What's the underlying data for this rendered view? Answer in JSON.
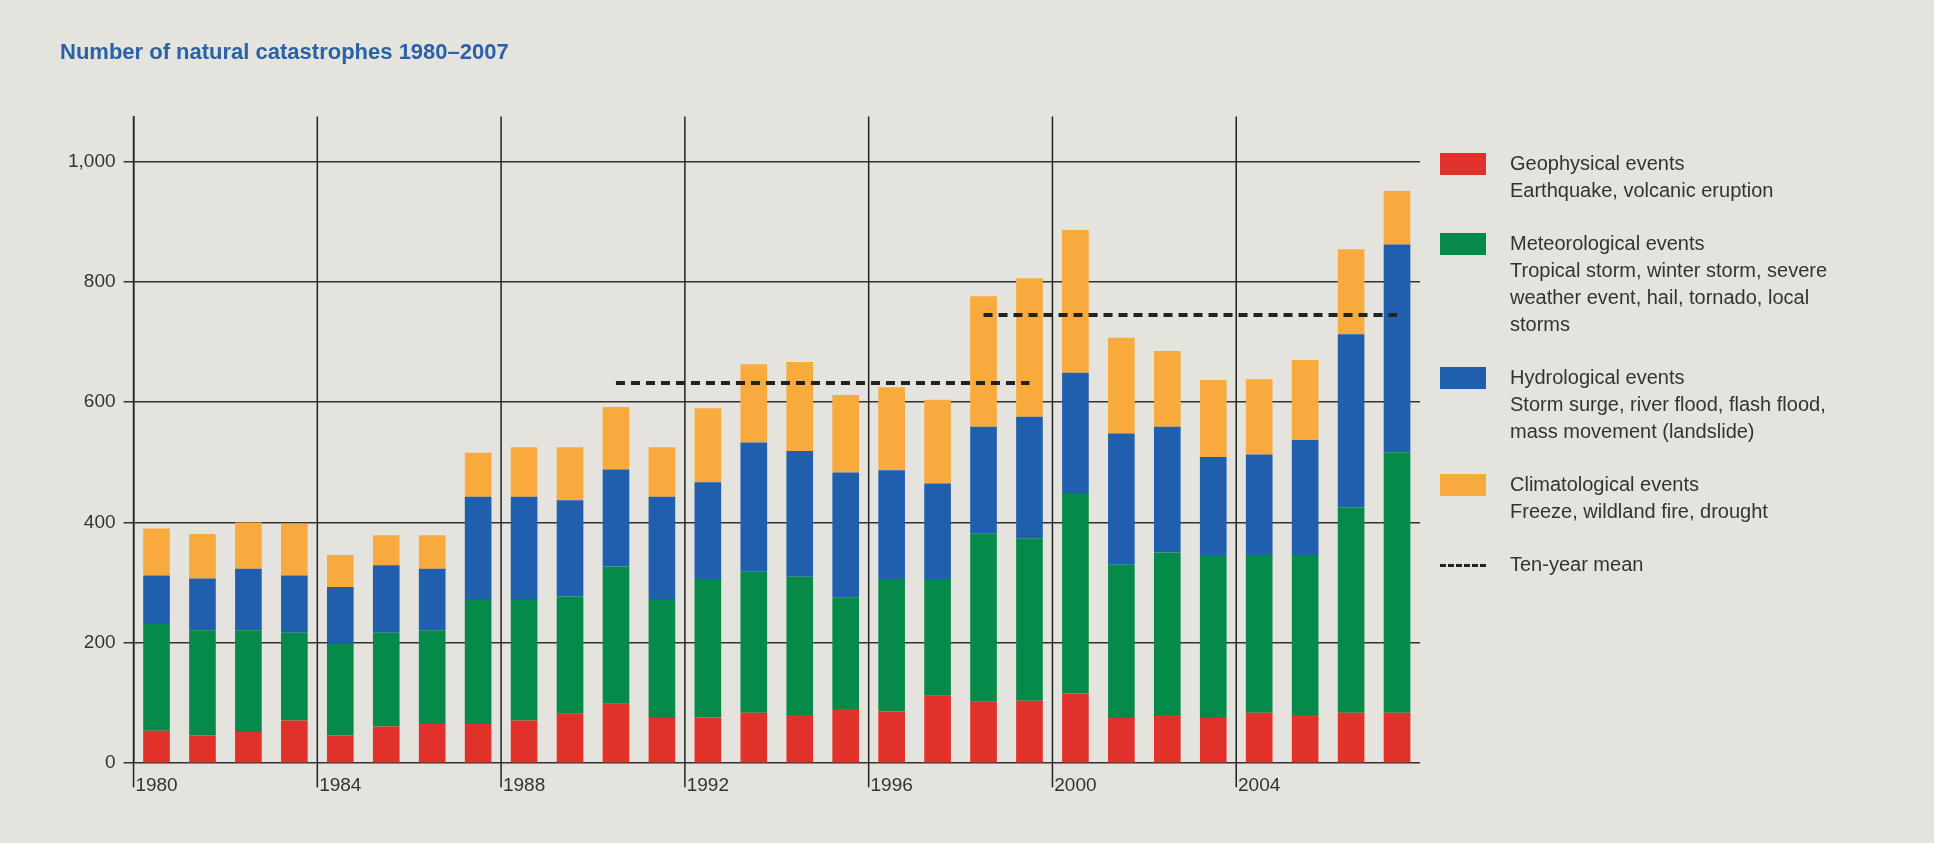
{
  "chart_data": {
    "type": "bar",
    "title": "Number of natural catastrophes 1980–2007",
    "categories": [
      "1980",
      null,
      null,
      null,
      "1984",
      null,
      null,
      null,
      "1988",
      null,
      null,
      null,
      "1992",
      null,
      null,
      null,
      "1996",
      null,
      null,
      null,
      "2000",
      null,
      null,
      null,
      "2004",
      null,
      null,
      null
    ],
    "stacked": true,
    "series": [
      {
        "name": "Geophysical events",
        "color": "#e0312b",
        "values": [
          54,
          46,
          52,
          71,
          46,
          61,
          65,
          65,
          71,
          82,
          99,
          75,
          76,
          84,
          80,
          90,
          86,
          112,
          102,
          104,
          116,
          75,
          80,
          75,
          84,
          80,
          84,
          84
        ]
      },
      {
        "name": "Meteorological events",
        "color": "#058a4a",
        "values": [
          179,
          175,
          169,
          146,
          152,
          156,
          156,
          208,
          202,
          195,
          228,
          198,
          230,
          234,
          230,
          186,
          220,
          194,
          280,
          270,
          333,
          255,
          270,
          271,
          262,
          266,
          341,
          433
        ]
      },
      {
        "name": "Hydrological events",
        "color": "#1f5fae",
        "values": [
          79,
          86,
          102,
          95,
          95,
          112,
          102,
          170,
          170,
          160,
          161,
          170,
          161,
          215,
          209,
          207,
          181,
          159,
          177,
          202,
          200,
          218,
          209,
          163,
          167,
          191,
          288,
          345
        ]
      },
      {
        "name": "Climatological events",
        "color": "#f8ab3c",
        "values": [
          78,
          74,
          77,
          86,
          53,
          50,
          56,
          73,
          82,
          88,
          104,
          82,
          123,
          130,
          148,
          129,
          138,
          139,
          217,
          230,
          237,
          159,
          126,
          128,
          125,
          133,
          141,
          89
        ]
      },
      {
        "name": "Ten-year mean",
        "type": "line",
        "color": "#222222",
        "line_style": "dashed",
        "marker": "none",
        "values": [
          null,
          null,
          null,
          null,
          null,
          null,
          null,
          null,
          null,
          null,
          632,
          632,
          632,
          632,
          632,
          632,
          632,
          632,
          632,
          632,
          null,
          null,
          null,
          null,
          null,
          null,
          null,
          null
        ]
      },
      {
        "type": "line",
        "color": "#222222",
        "line_style": "dashed",
        "marker": "none",
        "values": [
          null,
          null,
          null,
          null,
          null,
          null,
          null,
          null,
          null,
          null,
          null,
          null,
          null,
          null,
          null,
          null,
          null,
          null,
          745,
          745,
          745,
          745,
          745,
          745,
          745,
          745,
          745,
          745
        ]
      }
    ],
    "annotations": [
      "Earthquake, volcanic eruption",
      "Tropical storm, winter storm, severe weather event, hail, tornado, local storms",
      "Storm surge, river flood, flash flood, mass movement (landslide)",
      "Freeze, wildland fire, drought"
    ],
    "ylim": [
      0,
      1075
    ],
    "yticks": [
      0,
      200,
      400,
      600,
      800,
      {
        "value": 1000,
        "label": "1,000"
      }
    ],
    "grid": true,
    "legend": "right"
  }
}
